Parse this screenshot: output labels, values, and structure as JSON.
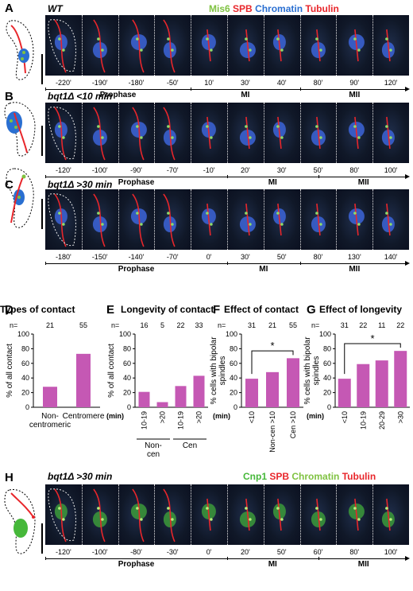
{
  "panels": {
    "A": {
      "letter": "A",
      "title": "WT",
      "times": [
        "-220'",
        "-190'",
        "-180'",
        "-50'",
        "10'",
        "30'",
        "40'",
        "80'",
        "90'",
        "120'"
      ],
      "phases": [
        "Prophase",
        "MI",
        "MII"
      ]
    },
    "B": {
      "letter": "B",
      "title": "bqt1Δ  <10 min",
      "times": [
        "-120'",
        "-100'",
        "-90'",
        "-70'",
        "-10'",
        "20'",
        "30'",
        "50'",
        "80'",
        "100'"
      ],
      "phases": [
        "Prophase",
        "MI",
        "MII"
      ]
    },
    "C": {
      "letter": "C",
      "title": "bqt1Δ  >30 min",
      "times": [
        "-180'",
        "-150'",
        "-140'",
        "-70'",
        "0'",
        "30'",
        "50'",
        "80'",
        "130'",
        "140'"
      ],
      "phases": [
        "Prophase",
        "MI",
        "MII"
      ]
    },
    "H": {
      "letter": "H",
      "title": "bqt1Δ  >30 min",
      "times": [
        "-120'",
        "-100'",
        "-80'",
        "-30'",
        "0'",
        "20'",
        "50'",
        "60'",
        "80'",
        "100'"
      ],
      "phases": [
        "Prophase",
        "MI",
        "MII"
      ]
    }
  },
  "legend_top": {
    "mis6": "Mis6",
    "spb": "SPB",
    "chromatin": "Chromatin",
    "tubulin": "Tubulin",
    "colors": {
      "mis6": "#7fc241",
      "spb": "#e8262b",
      "chromatin": "#2a6fd1",
      "tubulin": "#e8262b"
    }
  },
  "legend_bottom": {
    "cnp1": "Cnp1",
    "spb": "SPB",
    "chromatin": "Chromatin",
    "tubulin": "Tubulin",
    "colors": {
      "cnp1": "#46b83a",
      "spb": "#e8262b",
      "chromatin": "#7fc241",
      "tubulin": "#e8262b"
    }
  },
  "bar_color": "#c558b4",
  "chart_data": [
    {
      "panel": "D",
      "type": "bar",
      "title": "Types of contact",
      "ylabel": "% of all contact",
      "ylim": [
        0,
        100
      ],
      "yticks": [
        0,
        20,
        40,
        60,
        80,
        100
      ],
      "n_label": "n=",
      "n": [
        "21",
        "55"
      ],
      "categories": [
        "Non-\ncentromeric",
        "Centromere"
      ],
      "values": [
        28,
        73
      ]
    },
    {
      "panel": "E",
      "type": "bar",
      "title": "Longevity of contact",
      "ylabel": "% of all contact",
      "ylim": [
        0,
        100
      ],
      "yticks": [
        0,
        20,
        40,
        60,
        80,
        100
      ],
      "n_label": "n=",
      "n": [
        "16",
        "5",
        "22",
        "33"
      ],
      "unit_label": "(min)",
      "categories": [
        "10-19",
        ">20",
        "10-19",
        ">20"
      ],
      "groups": [
        "Non-\ncen",
        "Cen"
      ],
      "values": [
        21,
        7,
        29,
        43
      ]
    },
    {
      "panel": "F",
      "type": "bar",
      "title": "Effect of contact",
      "ylabel": "% cells with bipolar spindles",
      "ylim": [
        0,
        100
      ],
      "yticks": [
        0,
        20,
        40,
        60,
        80,
        100
      ],
      "n_label": "n=",
      "n": [
        "31",
        "21",
        "55"
      ],
      "unit_label": "(min)",
      "categories": [
        "<10",
        "Non-cen >10",
        "Cen >10"
      ],
      "values": [
        39,
        48,
        67
      ],
      "significance": "*"
    },
    {
      "panel": "G",
      "type": "bar",
      "title": "Effect of longevity",
      "ylabel": "% cells with bipolar spindles",
      "ylim": [
        0,
        100
      ],
      "yticks": [
        0,
        20,
        40,
        60,
        80,
        100
      ],
      "n_label": "n=",
      "n": [
        "31",
        "22",
        "11",
        "22"
      ],
      "unit_label": "(min)",
      "categories": [
        "<10",
        "10-19",
        "20-29",
        ">30"
      ],
      "values": [
        39,
        59,
        64,
        77
      ],
      "significance": "*"
    }
  ],
  "panel_letters": {
    "D": "D",
    "E": "E",
    "F": "F",
    "G": "G"
  }
}
